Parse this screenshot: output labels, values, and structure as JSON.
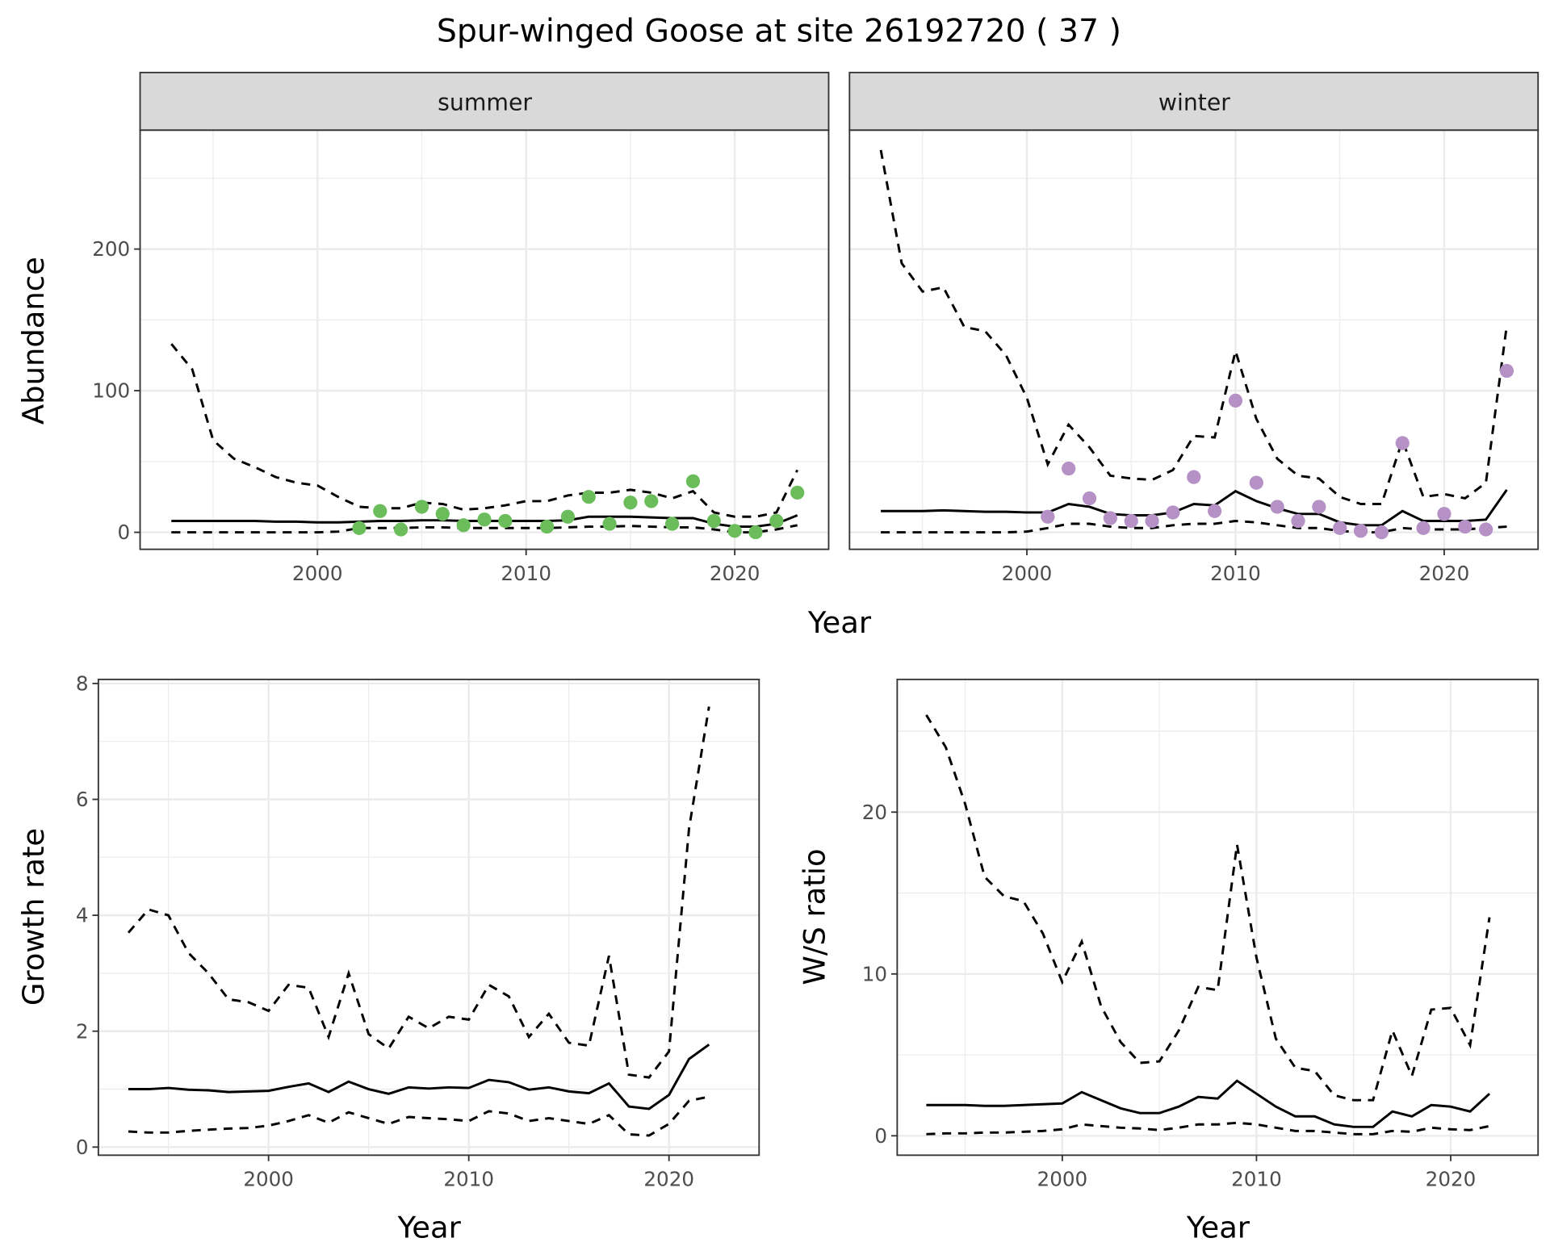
{
  "title": "Spur-winged Goose at site 26192720 ( 37 )",
  "colors": {
    "summer": "#6ABD5A",
    "winter": "#B591C6",
    "line": "#000000"
  },
  "chart_data": [
    {
      "type": "line",
      "facet": "summer",
      "xlabel": "Year",
      "ylabel": "Abundance",
      "xlim": [
        1991.5,
        2024.5
      ],
      "ylim": [
        -12,
        284
      ],
      "xticks": [
        2000,
        2010,
        2020
      ],
      "yticks": [
        0,
        100,
        200
      ],
      "grid": true,
      "years": [
        1993,
        1994,
        1995,
        1996,
        1997,
        1998,
        1999,
        2000,
        2001,
        2002,
        2003,
        2004,
        2005,
        2006,
        2007,
        2008,
        2009,
        2010,
        2011,
        2012,
        2013,
        2014,
        2015,
        2016,
        2017,
        2018,
        2019,
        2020,
        2021,
        2022,
        2023
      ],
      "mean": [
        8,
        8,
        8,
        8,
        8,
        7.5,
        7.5,
        7,
        7,
        7.5,
        8,
        8,
        8.5,
        8.5,
        8,
        8,
        8,
        8,
        8,
        8.5,
        11,
        11,
        11,
        10.5,
        10,
        10,
        6,
        4,
        4,
        6,
        12
      ],
      "upper": [
        133,
        115,
        65,
        52,
        46,
        39,
        35,
        33,
        25,
        18,
        17,
        17,
        21,
        20,
        16,
        17,
        19,
        22,
        22,
        26,
        28,
        28,
        30,
        28,
        24,
        29,
        14,
        11,
        11,
        14,
        44
      ],
      "lower": [
        0,
        0,
        0,
        0,
        0,
        0,
        0,
        0,
        0.5,
        3,
        3,
        3,
        3.5,
        3.5,
        3,
        3,
        3,
        3,
        3,
        3.5,
        4,
        4,
        4.5,
        4,
        3.5,
        3.5,
        2,
        0,
        0,
        2,
        5
      ],
      "points": {
        "years": [
          2002,
          2003,
          2004,
          2005,
          2006,
          2007,
          2008,
          2009,
          2011,
          2012,
          2013,
          2014,
          2015,
          2016,
          2017,
          2018,
          2019,
          2020,
          2021,
          2022,
          2023
        ],
        "values": [
          3,
          15,
          2,
          18,
          13,
          5,
          9,
          8,
          4,
          11,
          25,
          6,
          21,
          22,
          6,
          36,
          8,
          1,
          0,
          8,
          28
        ]
      }
    },
    {
      "type": "line",
      "facet": "winter",
      "xlabel": "Year",
      "ylabel": "Abundance",
      "xlim": [
        1991.5,
        2024.5
      ],
      "ylim": [
        -12,
        284
      ],
      "xticks": [
        2000,
        2010,
        2020
      ],
      "yticks": [
        0,
        100,
        200
      ],
      "grid": true,
      "years": [
        1993,
        1994,
        1995,
        1996,
        1997,
        1998,
        1999,
        2000,
        2001,
        2002,
        2003,
        2004,
        2005,
        2006,
        2007,
        2008,
        2009,
        2010,
        2011,
        2012,
        2013,
        2014,
        2015,
        2016,
        2017,
        2018,
        2019,
        2020,
        2021,
        2022,
        2023
      ],
      "mean": [
        15,
        15,
        15,
        15.5,
        15,
        14.5,
        14.5,
        14,
        14,
        20,
        18,
        13,
        12,
        12,
        14,
        20,
        19,
        29,
        22,
        17,
        13,
        13,
        7,
        5,
        5,
        15,
        8,
        8,
        8,
        9,
        30
      ],
      "upper": [
        270,
        190,
        170,
        173,
        145,
        142,
        125,
        95,
        48,
        76,
        60,
        40,
        38,
        37,
        44,
        68,
        67,
        128,
        80,
        52,
        40,
        38,
        25,
        20,
        20,
        65,
        25,
        27,
        24,
        35,
        146
      ],
      "lower": [
        0,
        0,
        0,
        0,
        0,
        0,
        0,
        0.5,
        3,
        6,
        6,
        4,
        3,
        3,
        5,
        6,
        6,
        8,
        7,
        5,
        3,
        3,
        1,
        0,
        0,
        3,
        2,
        2,
        2,
        3,
        4
      ],
      "points": {
        "years": [
          2001,
          2002,
          2003,
          2004,
          2005,
          2006,
          2007,
          2008,
          2009,
          2010,
          2011,
          2012,
          2013,
          2014,
          2015,
          2016,
          2017,
          2018,
          2019,
          2020,
          2021,
          2022,
          2023
        ],
        "values": [
          11,
          45,
          24,
          10,
          8,
          8,
          14,
          39,
          15,
          93,
          35,
          18,
          8,
          18,
          3,
          1,
          0,
          63,
          3,
          13,
          4,
          2,
          114
        ]
      }
    },
    {
      "type": "line",
      "xlabel": "Year",
      "ylabel": "Growth rate",
      "xlim": [
        1991.5,
        2024.5
      ],
      "ylim": [
        -0.14,
        8.07
      ],
      "xticks": [
        2000,
        2010,
        2020
      ],
      "yticks": [
        0,
        2,
        4,
        6,
        8
      ],
      "grid": true,
      "years": [
        1993,
        1994,
        1995,
        1996,
        1997,
        1998,
        1999,
        2000,
        2001,
        2002,
        2003,
        2004,
        2005,
        2006,
        2007,
        2008,
        2009,
        2010,
        2011,
        2012,
        2013,
        2014,
        2015,
        2016,
        2017,
        2018,
        2019,
        2020,
        2021,
        2022
      ],
      "upper": [
        3.7,
        4.1,
        4.0,
        3.35,
        3.0,
        2.55,
        2.5,
        2.35,
        2.8,
        2.75,
        1.9,
        3.0,
        1.95,
        1.7,
        2.25,
        2.05,
        2.25,
        2.2,
        2.8,
        2.6,
        1.9,
        2.3,
        1.8,
        1.75,
        3.3,
        1.25,
        1.2,
        1.65,
        5.5,
        7.6
      ],
      "mean": [
        1.0,
        1.0,
        1.02,
        0.99,
        0.98,
        0.95,
        0.96,
        0.97,
        1.04,
        1.1,
        0.95,
        1.13,
        1.0,
        0.92,
        1.03,
        1.01,
        1.03,
        1.02,
        1.16,
        1.12,
        0.99,
        1.03,
        0.96,
        0.93,
        1.1,
        0.7,
        0.66,
        0.9,
        1.52,
        1.77
      ],
      "lower": [
        0.27,
        0.25,
        0.25,
        0.28,
        0.3,
        0.32,
        0.33,
        0.37,
        0.45,
        0.55,
        0.42,
        0.6,
        0.5,
        0.4,
        0.52,
        0.5,
        0.48,
        0.45,
        0.62,
        0.58,
        0.45,
        0.5,
        0.45,
        0.4,
        0.55,
        0.22,
        0.2,
        0.4,
        0.8,
        0.87
      ]
    },
    {
      "type": "line",
      "xlabel": "Year",
      "ylabel": "W/S ratio",
      "xlim": [
        1991.5,
        2024.5
      ],
      "ylim": [
        -1.2,
        28.2
      ],
      "xticks": [
        2000,
        2010,
        2020
      ],
      "yticks": [
        0,
        10,
        20
      ],
      "grid": true,
      "years": [
        1993,
        1994,
        1995,
        1996,
        1997,
        1998,
        1999,
        2000,
        2001,
        2002,
        2003,
        2004,
        2005,
        2006,
        2007,
        2008,
        2009,
        2010,
        2011,
        2012,
        2013,
        2014,
        2015,
        2016,
        2017,
        2018,
        2019,
        2020,
        2021,
        2022
      ],
      "upper": [
        26,
        24,
        20.5,
        16,
        14.8,
        14.5,
        12.5,
        9.5,
        12,
        8,
        5.8,
        4.5,
        4.6,
        6.5,
        9.2,
        9,
        18,
        11,
        6,
        4.2,
        4,
        2.5,
        2.2,
        2.2,
        6.5,
        3.7,
        7.8,
        7.9,
        5.6,
        13.5
      ],
      "mean": [
        1.9,
        1.9,
        1.9,
        1.85,
        1.85,
        1.9,
        1.95,
        2,
        2.7,
        2.2,
        1.7,
        1.4,
        1.4,
        1.8,
        2.4,
        2.3,
        3.4,
        2.6,
        1.8,
        1.2,
        1.2,
        0.7,
        0.55,
        0.55,
        1.5,
        1.2,
        1.9,
        1.8,
        1.5,
        2.6
      ],
      "lower": [
        0.1,
        0.15,
        0.15,
        0.2,
        0.2,
        0.25,
        0.3,
        0.4,
        0.7,
        0.6,
        0.5,
        0.45,
        0.35,
        0.5,
        0.7,
        0.7,
        0.8,
        0.7,
        0.5,
        0.3,
        0.3,
        0.2,
        0.1,
        0.1,
        0.3,
        0.25,
        0.5,
        0.4,
        0.35,
        0.6
      ]
    }
  ]
}
